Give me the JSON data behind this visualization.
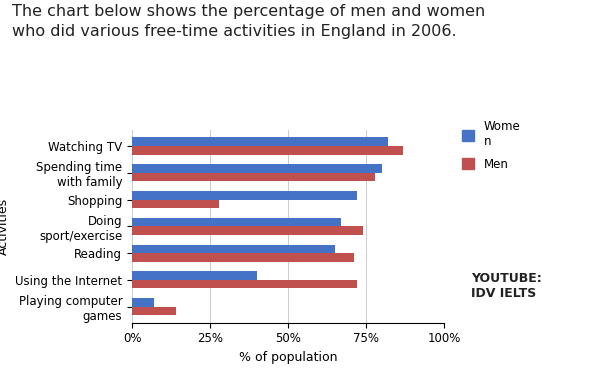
{
  "title": "The chart below shows the percentage of men and women\nwho did various free-time activities in England in 2006.",
  "categories": [
    "Watching TV",
    "Spending time\nwith family",
    "Shopping",
    "Doing\nsport/exercise",
    "Reading",
    "Using the Internet",
    "Playing computer\ngames"
  ],
  "women": [
    82,
    80,
    72,
    67,
    65,
    40,
    7
  ],
  "men": [
    87,
    78,
    28,
    74,
    71,
    72,
    14
  ],
  "women_color": "#4472C4",
  "men_color": "#C0504D",
  "xlabel": "% of population",
  "ylabel": "Activities",
  "xticks": [
    0,
    25,
    50,
    75,
    100
  ],
  "xtick_labels": [
    "0%",
    "25%",
    "50%",
    "75%",
    "100%"
  ],
  "legend_women": "Wome\nn",
  "legend_men": "Men",
  "watermark": "YOUTUBE:\nIDV IELTS",
  "title_fontsize": 11.5,
  "axis_fontsize": 9,
  "tick_fontsize": 8.5,
  "bar_height": 0.32,
  "background_color": "#ffffff"
}
